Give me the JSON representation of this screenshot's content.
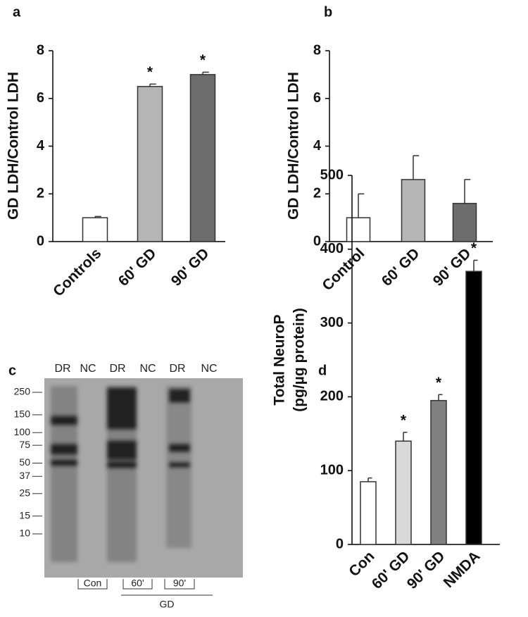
{
  "chart_data": [
    {
      "type": "bar",
      "panel": "a",
      "ylabel": "GD LDH/Control LDH",
      "categories": [
        "Controls",
        "60' GD",
        "90' GD"
      ],
      "values": [
        1,
        6.5,
        7.0
      ],
      "errors": [
        0.05,
        0.1,
        0.1
      ],
      "colors": [
        "#ffffff",
        "#b5b5b5",
        "#6d6d6d"
      ],
      "markers": [
        null,
        "*",
        "*"
      ],
      "ylim": [
        0,
        8
      ],
      "yticks": [
        0,
        2,
        4,
        6,
        8
      ]
    },
    {
      "type": "bar",
      "panel": "b",
      "ylabel": "GD LDH/Control LDH",
      "categories": [
        "Control",
        "60' GD",
        "90' GD"
      ],
      "values": [
        1,
        2.6,
        1.6
      ],
      "errors": [
        1.0,
        1.0,
        1.0
      ],
      "colors": [
        "#ffffff",
        "#b5b5b5",
        "#6d6d6d"
      ],
      "ylim": [
        0,
        8
      ],
      "yticks": [
        0,
        2,
        4,
        6,
        8
      ]
    },
    {
      "type": "blot",
      "panel": "c",
      "lanes": [
        "DR",
        "NC",
        "DR",
        "NC",
        "DR",
        "NC"
      ],
      "log_y": true,
      "ylim": [
        10,
        250
      ],
      "yticks": [
        250,
        150,
        100,
        75,
        50,
        37,
        25,
        15,
        10
      ],
      "groups": [
        "Con",
        "60'",
        "90'"
      ],
      "group_label": "GD"
    },
    {
      "type": "bar",
      "panel": "d",
      "ylabel": [
        "Total NeuroP",
        "(pg/µg protein)"
      ],
      "categories": [
        "Con",
        "60' GD",
        "90' GD",
        "NMDA"
      ],
      "values": [
        85,
        140,
        195,
        370
      ],
      "errors": [
        5,
        12,
        8,
        15
      ],
      "colors": [
        "#ffffff",
        "#d9d9d9",
        "#808080",
        "#000000"
      ],
      "markers": [
        null,
        "*",
        "*",
        "*"
      ],
      "ylim": [
        0,
        500
      ],
      "yticks": [
        0,
        100,
        200,
        300,
        400,
        500
      ]
    }
  ]
}
